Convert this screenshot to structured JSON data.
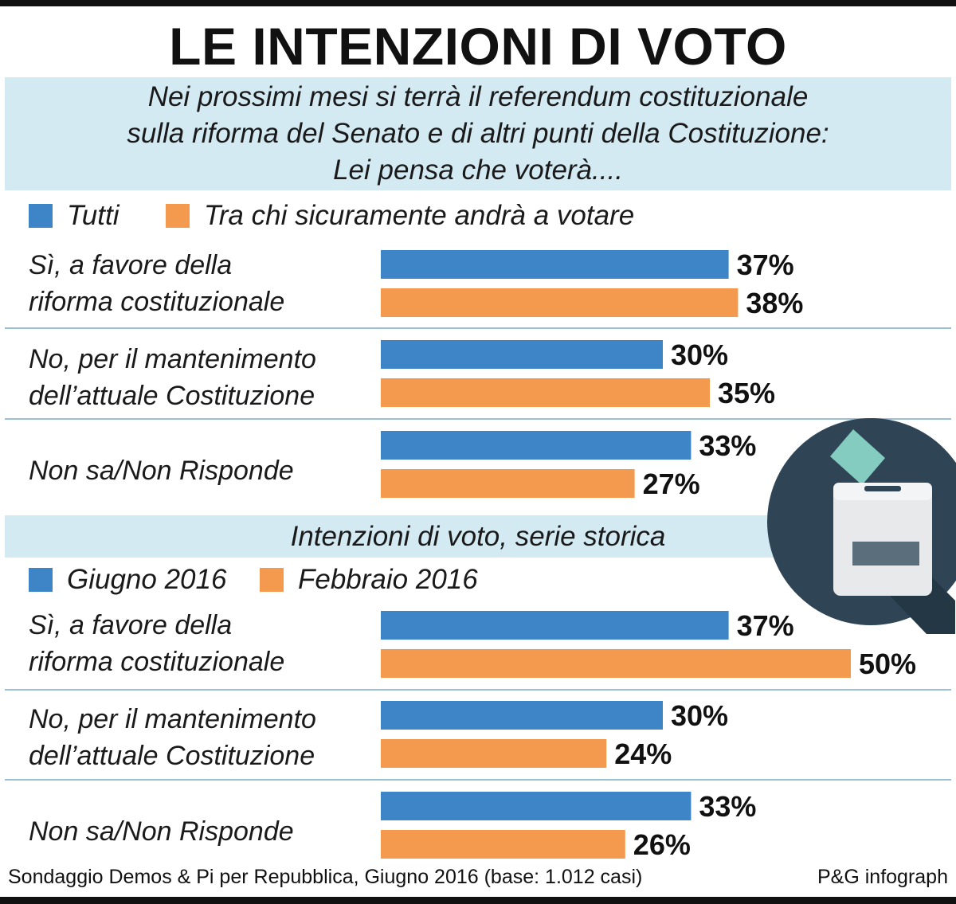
{
  "title": "LE INTENZIONI DI VOTO",
  "question": {
    "lines": [
      "Nei prossimi mesi si terrà il referendum costituzionale",
      "sulla riforma del Senato e di altri punti della Costituzione:",
      "Lei pensa che voterà...."
    ]
  },
  "colors": {
    "blue": "#3d85c6",
    "orange": "#f39a4f",
    "panel": "#d3eaf3",
    "divider": "#9bbfd4"
  },
  "section1": {
    "legend": [
      "Tutti",
      "Tra chi sicuramente andrà a votare"
    ]
  },
  "section2": {
    "heading": "Intenzioni di voto, serie storica",
    "legend": [
      "Giugno 2016",
      "Febbraio 2016"
    ]
  },
  "footer": {
    "source": "Sondaggio Demos & Pi per Repubblica, Giugno 2016 (base: 1.012 casi)",
    "credit": "P&G infograph"
  },
  "icons": {
    "ballot": "ballot-box-icon"
  },
  "chart_data": [
    {
      "type": "bar",
      "orientation": "horizontal",
      "categories": [
        [
          "Sì, a favore della",
          "riforma costituzionale"
        ],
        [
          "No, per il mantenimento",
          "dell’attuale Costituzione"
        ],
        [
          "Non sa/Non Risponde"
        ]
      ],
      "series": [
        {
          "name": "Tutti",
          "color": "#3d85c6",
          "values": [
            37,
            30,
            33
          ],
          "labels": [
            "37%",
            "30%",
            "33%"
          ]
        },
        {
          "name": "Tra chi sicuramente andrà a votare",
          "color": "#f39a4f",
          "values": [
            38,
            35,
            27
          ],
          "labels": [
            "38%",
            "35%",
            "27%"
          ]
        }
      ],
      "unit": "%",
      "xlim": [
        0,
        100
      ]
    },
    {
      "type": "bar",
      "orientation": "horizontal",
      "title": "Intenzioni di voto, serie storica",
      "categories": [
        [
          "Sì, a favore della",
          "riforma costituzionale"
        ],
        [
          "No, per il mantenimento",
          "dell’attuale Costituzione"
        ],
        [
          "Non sa/Non Risponde"
        ]
      ],
      "series": [
        {
          "name": "Giugno 2016",
          "color": "#3d85c6",
          "values": [
            37,
            30,
            33
          ],
          "labels": [
            "37%",
            "30%",
            "33%"
          ]
        },
        {
          "name": "Febbraio 2016",
          "color": "#f39a4f",
          "values": [
            50,
            24,
            26
          ],
          "labels": [
            "50%",
            "24%",
            "26%"
          ]
        }
      ],
      "unit": "%",
      "xlim": [
        0,
        100
      ]
    }
  ]
}
